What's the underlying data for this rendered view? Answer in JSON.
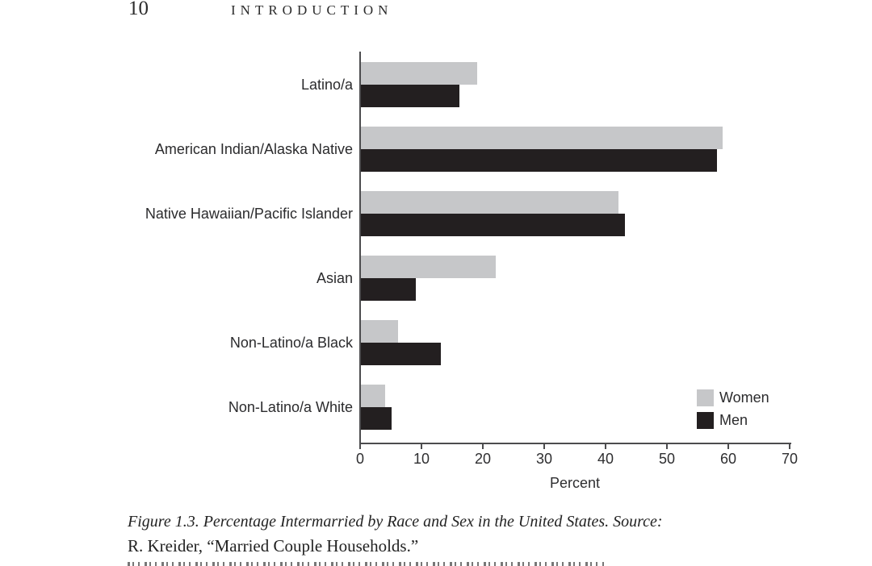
{
  "page_header": {
    "page_number": "10",
    "running_title": "INTRODUCTION"
  },
  "chart_data": {
    "type": "bar",
    "orientation": "horizontal",
    "title": "",
    "categories": [
      "Latino/a",
      "American Indian/Alaska Native",
      "Native Hawaiian/Pacific Islander",
      "Asian",
      "Non-Latino/a Black",
      "Non-Latino/a White"
    ],
    "series": [
      {
        "name": "Women",
        "color": "#c6c7c9",
        "values": [
          19,
          59,
          42,
          22,
          6,
          4
        ]
      },
      {
        "name": "Men",
        "color": "#231f20",
        "values": [
          16,
          58,
          43,
          9,
          13,
          5
        ]
      }
    ],
    "xlabel": "Percent",
    "xlim": [
      0,
      70
    ],
    "xticks": [
      0,
      10,
      20,
      30,
      40,
      50,
      60,
      70
    ],
    "grid": false,
    "legend_position": "inside-bottom-right",
    "axis_color": "#4c4c4e"
  },
  "caption": {
    "line1": "Figure 1.3.  Percentage Intermarried by Race and Sex in the United States. Source:",
    "line2": "R. Kreider, “Married Couple Households.”"
  }
}
